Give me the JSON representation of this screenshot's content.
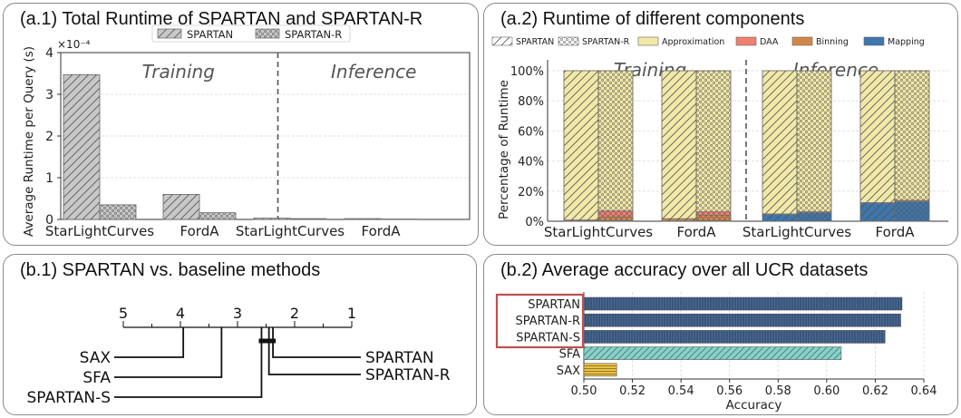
{
  "panels": {
    "a1": {
      "title": "(a.1) Total Runtime of SPARTAN and SPARTAN-R"
    },
    "a2": {
      "title": "(a.2) Runtime of different components"
    },
    "b1": {
      "title": "(b.1) SPARTAN vs. baseline methods"
    },
    "b2": {
      "title": "(b.2) Average accuracy over all UCR datasets"
    }
  },
  "chart_data": [
    {
      "id": "a1",
      "type": "bar",
      "ylabel": "Average Runtime per Query (s)",
      "y_multiplier": "×10⁻⁴",
      "ylim": [
        0,
        4
      ],
      "yticks": [
        0,
        1,
        2,
        3,
        4
      ],
      "grid": true,
      "legend_position": "top-center",
      "section_labels": [
        "Training",
        "Inference"
      ],
      "categories": [
        "StarLightCurves",
        "FordA",
        "StarLightCurves",
        "FordA"
      ],
      "series": [
        {
          "name": "SPARTAN",
          "values": [
            3.47,
            0.6,
            0.03,
            0.02
          ],
          "color": "#c8c8c8",
          "pattern": "diagonal"
        },
        {
          "name": "SPARTAN-R",
          "values": [
            0.35,
            0.16,
            0.02,
            0.01
          ],
          "color": "#c8c8c8",
          "pattern": "dots"
        }
      ]
    },
    {
      "id": "a2",
      "type": "bar",
      "stacked": true,
      "ylabel": "Percentage of Runtime",
      "yticks": [
        "0%",
        "20%",
        "40%",
        "60%",
        "80%",
        "100%"
      ],
      "ylim": [
        0,
        100
      ],
      "grid": true,
      "legend_position": "top",
      "section_labels": [
        "Training",
        "Inference"
      ],
      "categories": [
        "StarLightCurves",
        "FordA",
        "StarLightCurves",
        "FordA"
      ],
      "legend": [
        {
          "name": "SPARTAN",
          "color": "#ffffff",
          "pattern": "diagonal"
        },
        {
          "name": "SPARTAN-R",
          "color": "#ffffff",
          "pattern": "dots"
        },
        {
          "name": "Approximation",
          "color": "#f2e9a8"
        },
        {
          "name": "DAA",
          "color": "#f08070"
        },
        {
          "name": "Binning",
          "color": "#d2874a"
        },
        {
          "name": "Mapping",
          "color": "#3e76ad"
        }
      ],
      "bars": [
        {
          "method": "SPARTAN",
          "category": 0,
          "Mapping": 0.2,
          "Binning": 0.3,
          "DAA": 0.5,
          "Approximation": 99.0
        },
        {
          "method": "SPARTAN-R",
          "category": 0,
          "Mapping": 0.5,
          "Binning": 2.5,
          "DAA": 4.0,
          "Approximation": 93.0
        },
        {
          "method": "SPARTAN",
          "category": 1,
          "Mapping": 0.3,
          "Binning": 1.2,
          "DAA": 0.3,
          "Approximation": 98.2
        },
        {
          "method": "SPARTAN-R",
          "category": 1,
          "Mapping": 0.5,
          "Binning": 3.5,
          "DAA": 2.5,
          "Approximation": 93.5
        },
        {
          "method": "SPARTAN",
          "category": 2,
          "Mapping": 4.5,
          "Binning": 0.3,
          "DAA": 0.2,
          "Approximation": 95.0
        },
        {
          "method": "SPARTAN-R",
          "category": 2,
          "Mapping": 5.5,
          "Binning": 0.5,
          "DAA": 0.5,
          "Approximation": 93.5
        },
        {
          "method": "SPARTAN",
          "category": 3,
          "Mapping": 12.0,
          "Binning": 0.3,
          "DAA": 0.2,
          "Approximation": 87.5
        },
        {
          "method": "SPARTAN-R",
          "category": 3,
          "Mapping": 13.0,
          "Binning": 0.5,
          "DAA": 0.5,
          "Approximation": 86.0
        }
      ]
    },
    {
      "id": "b1",
      "type": "critical-difference",
      "axis_ticks": [
        5,
        4,
        3,
        2,
        1
      ],
      "axis_range": [
        5,
        1
      ],
      "methods": [
        {
          "name": "SAX",
          "rank": 3.95,
          "side": "left"
        },
        {
          "name": "SFA",
          "rank": 3.28,
          "side": "left"
        },
        {
          "name": "SPARTAN-S",
          "rank": 2.58,
          "side": "left"
        },
        {
          "name": "SPARTAN",
          "rank": 2.38,
          "side": "right"
        },
        {
          "name": "SPARTAN-R",
          "rank": 2.45,
          "side": "right"
        }
      ],
      "cliques": [
        [
          2.58,
          2.38
        ]
      ]
    },
    {
      "id": "b2",
      "type": "bar",
      "orientation": "horizontal",
      "xlabel": "Accuracy",
      "xlim": [
        0.5,
        0.64
      ],
      "xticks": [
        "0.50",
        "0.52",
        "0.54",
        "0.56",
        "0.58",
        "0.60",
        "0.62",
        "0.64"
      ],
      "grid": true,
      "categories": [
        "SPARTAN",
        "SPARTAN-R",
        "SPARTAN-S",
        "SFA",
        "SAX"
      ],
      "values": [
        0.631,
        0.6305,
        0.624,
        0.606,
        0.5135
      ],
      "colors": [
        "#4a6a94",
        "#4a6a94",
        "#4a6a94",
        "#8ccfc8",
        "#e8c24a"
      ],
      "highlighted": [
        "SPARTAN",
        "SPARTAN-R",
        "SPARTAN-S"
      ],
      "highlight_color": "#c0504d"
    }
  ]
}
